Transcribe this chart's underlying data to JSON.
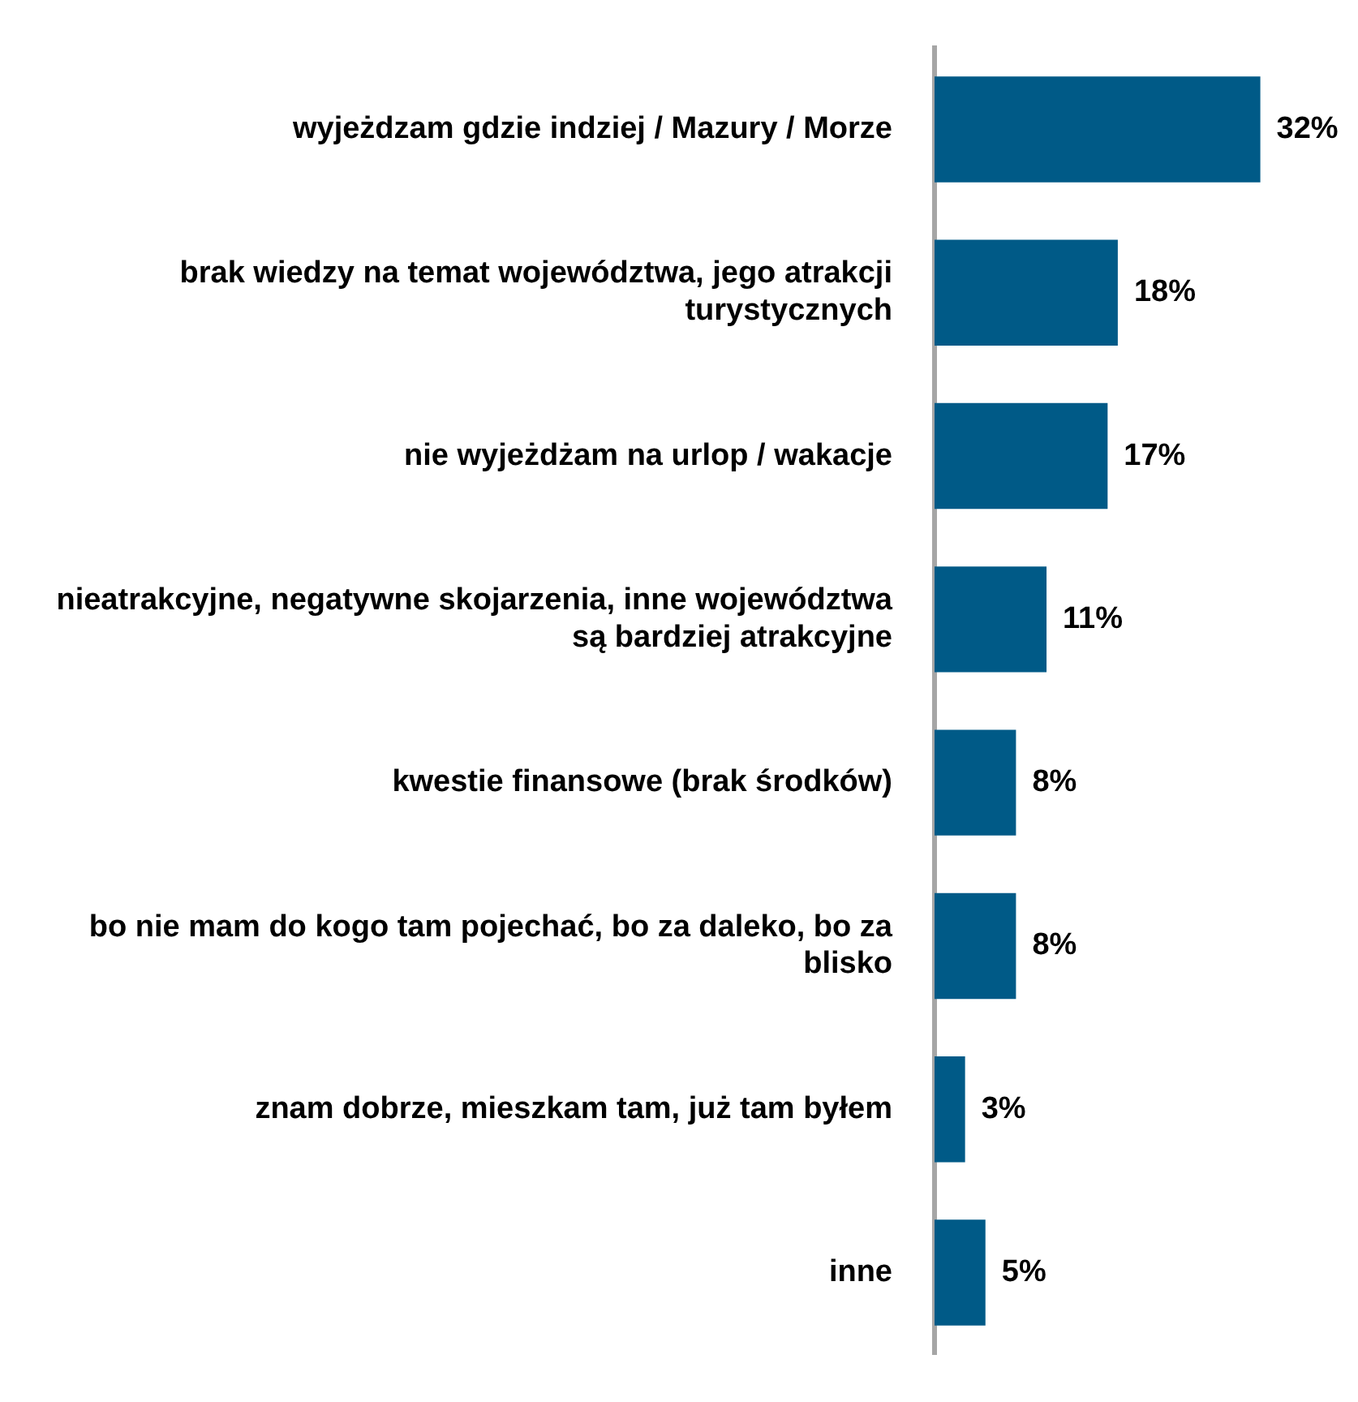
{
  "chart_data": {
    "type": "bar",
    "orientation": "horizontal",
    "categories": [
      "wyjeżdzam gdzie indziej / Mazury / Morze",
      "brak wiedzy na temat województwa, jego atrakcji turystycznych",
      "nie wyjeżdżam na urlop / wakacje",
      "nieatrakcyjne, negatywne skojarzenia, inne województwa są bardziej atrakcyjne",
      "kwestie finansowe (brak środków)",
      "bo nie mam do kogo tam pojechać, bo za daleko, bo za blisko",
      "znam dobrze, mieszkam tam, już tam byłem",
      "inne"
    ],
    "values": [
      32,
      18,
      17,
      11,
      8,
      8,
      3,
      5
    ],
    "value_labels": [
      "32%",
      "18%",
      "17%",
      "11%",
      "8%",
      "8%",
      "3%",
      "5%"
    ],
    "color": "#005a87",
    "legend": false,
    "tick_labels": "y"
  }
}
